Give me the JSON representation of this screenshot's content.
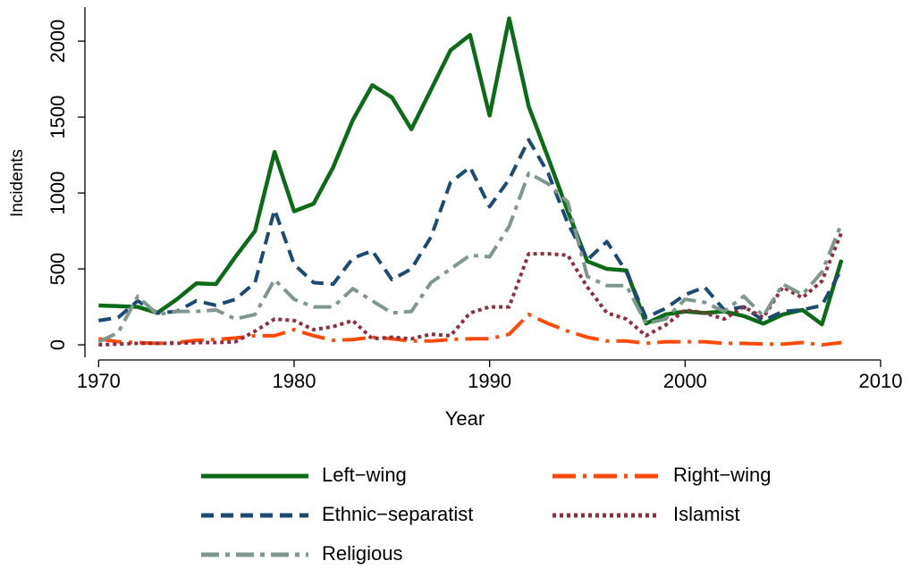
{
  "chart_data": {
    "type": "line",
    "x_label": "Year",
    "y_label": "Incidents",
    "x": [
      1970,
      1971,
      1972,
      1973,
      1974,
      1975,
      1976,
      1977,
      1978,
      1979,
      1980,
      1981,
      1982,
      1983,
      1984,
      1985,
      1986,
      1987,
      1988,
      1989,
      1990,
      1991,
      1992,
      1993,
      1994,
      1995,
      1996,
      1997,
      1998,
      1999,
      2000,
      2001,
      2002,
      2003,
      2004,
      2005,
      2006,
      2007,
      2008
    ],
    "series": [
      {
        "name": "Left−wing",
        "color": "#0b6b16",
        "values": [
          259,
          255,
          250,
          210,
          300,
          405,
          400,
          580,
          750,
          1270,
          880,
          930,
          1170,
          1480,
          1710,
          1630,
          1420,
          1680,
          1940,
          2040,
          1510,
          2150,
          1570,
          1230,
          880,
          550,
          500,
          490,
          140,
          200,
          220,
          210,
          220,
          190,
          140,
          200,
          230,
          135,
          560
        ]
      },
      {
        "name": "Right−wing",
        "color": "#ff4a0a",
        "values": [
          40,
          20,
          15,
          10,
          15,
          30,
          35,
          45,
          60,
          60,
          100,
          60,
          30,
          35,
          50,
          40,
          25,
          25,
          35,
          40,
          40,
          70,
          200,
          140,
          90,
          50,
          25,
          25,
          10,
          20,
          20,
          20,
          10,
          10,
          5,
          5,
          15,
          0,
          15
        ]
      },
      {
        "name": "Ethnic−separatist",
        "color": "#1b4a72",
        "values": [
          160,
          180,
          290,
          210,
          220,
          290,
          260,
          300,
          410,
          890,
          530,
          410,
          400,
          570,
          620,
          430,
          500,
          710,
          1070,
          1170,
          910,
          1090,
          1350,
          1130,
          800,
          560,
          680,
          480,
          180,
          240,
          330,
          380,
          230,
          250,
          160,
          220,
          230,
          260,
          500
        ]
      },
      {
        "name": "Islamist",
        "color": "#8c3040",
        "values": [
          0,
          5,
          10,
          10,
          10,
          15,
          15,
          20,
          90,
          170,
          160,
          100,
          120,
          160,
          40,
          50,
          40,
          70,
          60,
          210,
          250,
          250,
          600,
          600,
          590,
          380,
          210,
          170,
          60,
          130,
          230,
          210,
          170,
          250,
          180,
          380,
          310,
          420,
          740
        ]
      },
      {
        "name": "Religious",
        "color": "#7f978c",
        "values": [
          20,
          80,
          320,
          200,
          220,
          220,
          230,
          170,
          200,
          430,
          300,
          250,
          250,
          370,
          290,
          210,
          220,
          410,
          500,
          590,
          580,
          780,
          1130,
          1060,
          940,
          450,
          390,
          390,
          140,
          170,
          300,
          280,
          220,
          320,
          190,
          400,
          330,
          480,
          800
        ]
      }
    ],
    "xlim": [
      1969.3,
      2010
    ],
    "xticks": [
      1970,
      1980,
      1990,
      2000,
      2010
    ],
    "ylim": [
      -82,
      2224
    ],
    "yticks": [
      0,
      500,
      1000,
      1500,
      2000
    ]
  }
}
